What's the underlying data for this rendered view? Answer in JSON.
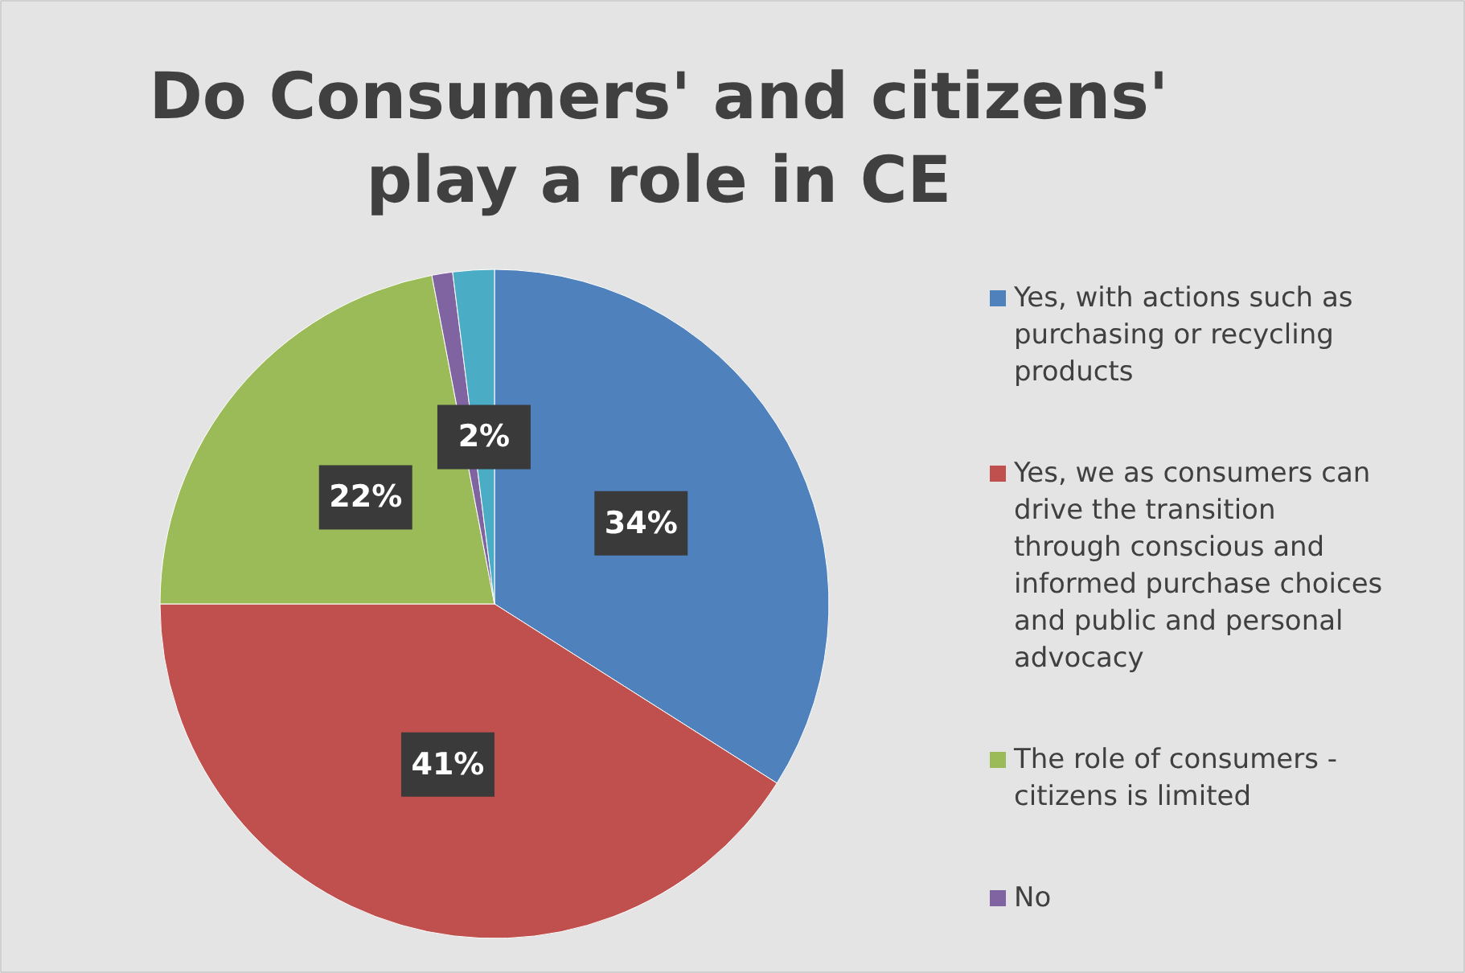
{
  "chart_data": {
    "type": "pie",
    "title": "Do Consumers' and citizens' play a role in CE",
    "categories": [
      "Yes, with actions such as purchasing or recycling products",
      "Yes, we as consumers can drive the transition through conscious and informed purchase choices and public and personal advocacy",
      "The role of consumers - citizens is limited",
      "No",
      null
    ],
    "values": [
      34,
      41,
      22,
      1,
      2
    ],
    "colors": [
      "#4f81bd",
      "#c0504d",
      "#9bbb59",
      "#8064a2",
      "#4bacc6"
    ],
    "value_labels": [
      "34%",
      "41%",
      "22%",
      null,
      "2%"
    ],
    "legend": "right"
  }
}
